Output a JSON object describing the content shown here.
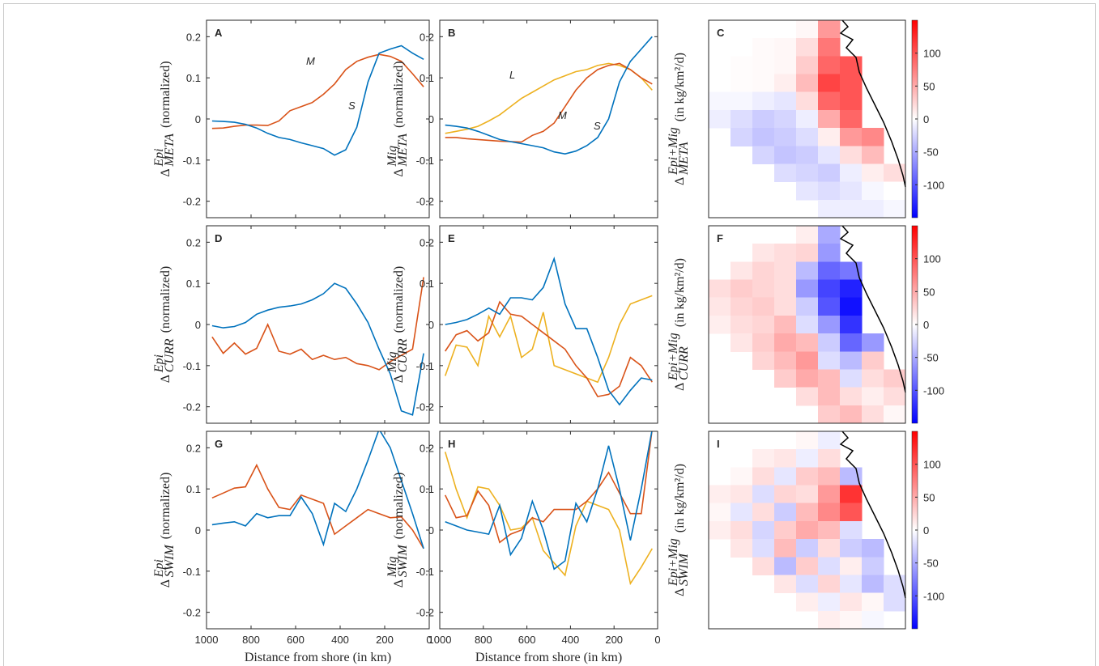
{
  "chart_data": [
    {
      "type": "line",
      "label": "A",
      "ylabel": {
        "symbol": "Δ",
        "sup": "Epi",
        "sub": "META",
        "text": "(normalized)"
      },
      "x": [
        975,
        925,
        875,
        825,
        775,
        725,
        675,
        625,
        575,
        525,
        475,
        425,
        375,
        325,
        275,
        225,
        175,
        125,
        75,
        25
      ],
      "xlim": [
        0,
        1000
      ],
      "xdir": "reverse",
      "xticks": [
        1000,
        800,
        600,
        400,
        200,
        0
      ],
      "xticklabels": false,
      "ylim": [
        -0.24,
        0.24
      ],
      "yticks": [
        -0.2,
        -0.1,
        0,
        0.1,
        0.2
      ],
      "series": [
        {
          "name": "M",
          "color": "#d95319",
          "values": [
            -0.023,
            -0.022,
            -0.018,
            -0.015,
            -0.015,
            -0.016,
            -0.005,
            0.02,
            0.03,
            0.04,
            0.06,
            0.085,
            0.12,
            0.14,
            0.15,
            0.157,
            0.152,
            0.14,
            0.11,
            0.078
          ]
        },
        {
          "name": "S",
          "color": "#0072bd",
          "values": [
            -0.005,
            -0.006,
            -0.008,
            -0.013,
            -0.022,
            -0.035,
            -0.045,
            -0.05,
            -0.058,
            -0.065,
            -0.072,
            -0.088,
            -0.075,
            -0.02,
            0.09,
            0.16,
            0.17,
            0.178,
            0.16,
            0.145
          ]
        }
      ]
    },
    {
      "type": "line",
      "label": "B",
      "ylabel": {
        "symbol": "Δ",
        "sup": "Mig",
        "sub": "META",
        "text": "(normalized)"
      },
      "x": [
        975,
        925,
        875,
        825,
        775,
        725,
        675,
        625,
        575,
        525,
        475,
        425,
        375,
        325,
        275,
        225,
        175,
        125,
        75,
        25
      ],
      "xlim": [
        0,
        1000
      ],
      "xdir": "reverse",
      "xticks": [
        1000,
        800,
        600,
        400,
        200,
        0
      ],
      "xticklabels": false,
      "ylim": [
        -0.24,
        0.24
      ],
      "yticks": [
        -0.2,
        -0.1,
        0,
        0.1,
        0.2
      ],
      "series": [
        {
          "name": "L",
          "color": "#edb120",
          "values": [
            -0.035,
            -0.03,
            -0.025,
            -0.018,
            -0.005,
            0.01,
            0.03,
            0.05,
            0.065,
            0.08,
            0.095,
            0.105,
            0.115,
            0.12,
            0.13,
            0.135,
            0.13,
            0.12,
            0.1,
            0.07
          ]
        },
        {
          "name": "M",
          "color": "#d95319",
          "values": [
            -0.045,
            -0.045,
            -0.048,
            -0.05,
            -0.052,
            -0.054,
            -0.055,
            -0.056,
            -0.04,
            -0.03,
            -0.01,
            0.03,
            0.07,
            0.1,
            0.12,
            0.13,
            0.135,
            0.12,
            0.1,
            0.085
          ]
        },
        {
          "name": "S",
          "color": "#0072bd",
          "values": [
            -0.015,
            -0.018,
            -0.022,
            -0.03,
            -0.04,
            -0.05,
            -0.055,
            -0.06,
            -0.065,
            -0.07,
            -0.08,
            -0.085,
            -0.078,
            -0.065,
            -0.045,
            0.0,
            0.09,
            0.14,
            0.17,
            0.2
          ]
        }
      ]
    },
    {
      "type": "heatmap",
      "label": "C",
      "ylabel": {
        "symbol": "Δ",
        "sup": "Epi+Mig",
        "sub": "META",
        "text": "(in kg/km²/d)"
      },
      "clim": [
        -150,
        150
      ],
      "colormap": [
        "#0000ff",
        "#ffffff",
        "#ff0000"
      ],
      "cticks": [
        -100,
        -50,
        0,
        50,
        100
      ],
      "values": [
        [
          null,
          null,
          null,
          null,
          5,
          60,
          null,
          null,
          null
        ],
        [
          null,
          null,
          3,
          5,
          20,
          80,
          null,
          null,
          null
        ],
        [
          null,
          2,
          3,
          5,
          30,
          90,
          100,
          null,
          null
        ],
        [
          0,
          2,
          3,
          10,
          40,
          110,
          100,
          null,
          null
        ],
        [
          -5,
          -5,
          -10,
          -15,
          20,
          90,
          100,
          null,
          null
        ],
        [
          -10,
          -20,
          -30,
          -25,
          -10,
          50,
          90,
          null,
          null
        ],
        [
          null,
          -25,
          -35,
          -30,
          -20,
          10,
          60,
          70,
          null
        ],
        [
          null,
          null,
          -25,
          -35,
          -30,
          -15,
          20,
          40,
          null
        ],
        [
          null,
          null,
          null,
          -20,
          -25,
          -30,
          -10,
          10,
          20
        ],
        [
          null,
          null,
          null,
          null,
          -15,
          -20,
          -15,
          -5,
          0
        ],
        [
          null,
          null,
          null,
          null,
          null,
          -10,
          -10,
          -10,
          -5
        ]
      ]
    },
    {
      "type": "line",
      "label": "D",
      "ylabel": {
        "symbol": "Δ",
        "sup": "Epi",
        "sub": "CURR",
        "text": "(normalized)"
      },
      "x": [
        975,
        925,
        875,
        825,
        775,
        725,
        675,
        625,
        575,
        525,
        475,
        425,
        375,
        325,
        275,
        225,
        175,
        125,
        75,
        25
      ],
      "xlim": [
        0,
        1000
      ],
      "xdir": "reverse",
      "xticks": [
        1000,
        800,
        600,
        400,
        200,
        0
      ],
      "xticklabels": false,
      "ylim": [
        -0.24,
        0.24
      ],
      "yticks": [
        -0.2,
        -0.1,
        0,
        0.1,
        0.2
      ],
      "series": [
        {
          "color": "#d95319",
          "values": [
            -0.03,
            -0.07,
            -0.045,
            -0.072,
            -0.058,
            0.0,
            -0.065,
            -0.072,
            -0.06,
            -0.085,
            -0.075,
            -0.085,
            -0.08,
            -0.095,
            -0.1,
            -0.11,
            -0.09,
            -0.075,
            -0.06,
            0.115
          ]
        },
        {
          "color": "#0072bd",
          "values": [
            -0.003,
            -0.008,
            -0.005,
            0.005,
            0.025,
            0.035,
            0.042,
            0.045,
            0.05,
            0.06,
            0.075,
            0.1,
            0.088,
            0.05,
            0.005,
            -0.06,
            -0.12,
            -0.21,
            -0.22,
            -0.07
          ]
        }
      ]
    },
    {
      "type": "line",
      "label": "E",
      "ylabel": {
        "symbol": "Δ",
        "sup": "Mig",
        "sub": "CURR",
        "text": "(normalized)"
      },
      "x": [
        975,
        925,
        875,
        825,
        775,
        725,
        675,
        625,
        575,
        525,
        475,
        425,
        375,
        325,
        275,
        225,
        175,
        125,
        75,
        25
      ],
      "xlim": [
        0,
        1000
      ],
      "xdir": "reverse",
      "xticks": [
        1000,
        800,
        600,
        400,
        200,
        0
      ],
      "xticklabels": false,
      "ylim": [
        -0.24,
        0.24
      ],
      "yticks": [
        -0.2,
        -0.1,
        0,
        0.1,
        0.2
      ],
      "series": [
        {
          "color": "#edb120",
          "values": [
            -0.125,
            -0.05,
            -0.055,
            -0.1,
            0.02,
            -0.03,
            0.02,
            -0.08,
            -0.06,
            0.03,
            -0.1,
            -0.11,
            -0.12,
            -0.13,
            -0.14,
            -0.08,
            0.0,
            0.05,
            0.06,
            0.07
          ]
        },
        {
          "color": "#d95319",
          "values": [
            -0.065,
            -0.025,
            -0.015,
            -0.04,
            -0.02,
            0.055,
            0.025,
            0.02,
            0.0,
            -0.02,
            -0.04,
            -0.06,
            -0.1,
            -0.13,
            -0.175,
            -0.17,
            -0.15,
            -0.08,
            -0.1,
            -0.14
          ]
        },
        {
          "color": "#0072bd",
          "values": [
            0.0,
            0.005,
            0.012,
            0.025,
            0.04,
            0.025,
            0.065,
            0.065,
            0.06,
            0.09,
            0.16,
            0.05,
            -0.01,
            -0.01,
            -0.08,
            -0.16,
            -0.195,
            -0.16,
            -0.13,
            -0.135
          ]
        }
      ]
    },
    {
      "type": "heatmap",
      "label": "F",
      "ylabel": {
        "symbol": "Δ",
        "sup": "Epi+Mig",
        "sub": "CURR",
        "text": "(in kg/km²/d)"
      },
      "clim": [
        -150,
        150
      ],
      "colormap": [
        "#0000ff",
        "#ffffff",
        "#ff0000"
      ],
      "cticks": [
        -100,
        -50,
        0,
        50,
        100
      ],
      "values": [
        [
          null,
          null,
          null,
          null,
          10,
          -50,
          null,
          null,
          null
        ],
        [
          null,
          null,
          15,
          20,
          25,
          -60,
          null,
          null,
          null
        ],
        [
          null,
          15,
          25,
          20,
          -40,
          -90,
          -80,
          null,
          null
        ],
        [
          20,
          30,
          25,
          20,
          -60,
          -110,
          -130,
          null,
          null
        ],
        [
          15,
          25,
          30,
          20,
          -30,
          -100,
          -140,
          null,
          null
        ],
        [
          10,
          20,
          25,
          40,
          -20,
          -60,
          -120,
          null,
          null
        ],
        [
          null,
          15,
          30,
          50,
          40,
          -30,
          -90,
          -60,
          null
        ],
        [
          null,
          null,
          25,
          40,
          60,
          -20,
          -40,
          30,
          null
        ],
        [
          null,
          null,
          null,
          30,
          50,
          40,
          -20,
          20,
          30
        ],
        [
          null,
          null,
          null,
          null,
          20,
          40,
          20,
          10,
          20
        ],
        [
          null,
          null,
          null,
          null,
          null,
          30,
          40,
          20,
          5
        ]
      ]
    },
    {
      "type": "line",
      "label": "G",
      "ylabel": {
        "symbol": "Δ",
        "sup": "Epi",
        "sub": "SWIM",
        "text": "(normalized)"
      },
      "x": [
        975,
        925,
        875,
        825,
        775,
        725,
        675,
        625,
        575,
        525,
        475,
        425,
        375,
        325,
        275,
        225,
        175,
        125,
        75,
        25
      ],
      "xlim": [
        0,
        1000
      ],
      "xdir": "reverse",
      "xticks": [
        1000,
        800,
        600,
        400,
        200,
        0
      ],
      "xticklabels": true,
      "xlabel": "Distance from shore (in km)",
      "ylim": [
        -0.24,
        0.24
      ],
      "yticks": [
        -0.2,
        -0.1,
        0,
        0.1,
        0.2
      ],
      "series": [
        {
          "color": "#d95319",
          "values": [
            0.078,
            0.09,
            0.102,
            0.105,
            0.158,
            0.1,
            0.055,
            0.05,
            0.085,
            0.075,
            0.065,
            -0.01,
            0.01,
            0.03,
            0.05,
            0.04,
            0.03,
            0.032,
            0.0,
            -0.045
          ]
        },
        {
          "color": "#0072bd",
          "values": [
            0.013,
            0.017,
            0.02,
            0.01,
            0.04,
            0.03,
            0.035,
            0.035,
            0.08,
            0.04,
            -0.035,
            0.065,
            0.045,
            0.1,
            0.17,
            0.245,
            0.2,
            0.12,
            0.04,
            -0.045
          ]
        }
      ]
    },
    {
      "type": "line",
      "label": "H",
      "ylabel": {
        "symbol": "Δ",
        "sup": "Mig",
        "sub": "SWIM",
        "text": "(normalized)"
      },
      "x": [
        975,
        925,
        875,
        825,
        775,
        725,
        675,
        625,
        575,
        525,
        475,
        425,
        375,
        325,
        275,
        225,
        175,
        125,
        75,
        25
      ],
      "xlim": [
        0,
        1000
      ],
      "xdir": "reverse",
      "xticks": [
        1000,
        800,
        600,
        400,
        200,
        0
      ],
      "xticklabels": true,
      "xlabel": "Distance from shore (in km)",
      "ylim": [
        -0.24,
        0.24
      ],
      "yticks": [
        -0.2,
        -0.1,
        0,
        0.1,
        0.2
      ],
      "series": [
        {
          "color": "#edb120",
          "values": [
            0.19,
            0.1,
            0.03,
            0.105,
            0.1,
            0.06,
            0.0,
            0.005,
            0.03,
            -0.05,
            -0.08,
            -0.11,
            0.01,
            0.07,
            0.06,
            0.05,
            0.0,
            -0.13,
            -0.09,
            -0.045
          ]
        },
        {
          "color": "#d95319",
          "values": [
            0.085,
            0.03,
            0.035,
            0.095,
            0.06,
            -0.03,
            -0.01,
            0.0,
            0.03,
            0.02,
            0.05,
            0.05,
            0.05,
            0.07,
            0.1,
            0.14,
            0.09,
            0.04,
            0.04,
            0.245
          ]
        },
        {
          "color": "#0072bd",
          "values": [
            0.02,
            0.01,
            0.0,
            -0.005,
            -0.01,
            0.06,
            -0.06,
            -0.02,
            0.07,
            0.0,
            -0.095,
            -0.075,
            0.065,
            0.02,
            0.1,
            0.205,
            0.1,
            -0.025,
            0.1,
            0.245
          ]
        }
      ]
    },
    {
      "type": "heatmap",
      "label": "I",
      "ylabel": {
        "symbol": "Δ",
        "sup": "Epi+Mig",
        "sub": "SWIM",
        "text": "(in kg/km²/d)"
      },
      "clim": [
        -150,
        150
      ],
      "colormap": [
        "#0000ff",
        "#ffffff",
        "#ff0000"
      ],
      "cticks": [
        -100,
        -50,
        0,
        50,
        100
      ],
      "values": [
        [
          null,
          null,
          null,
          null,
          5,
          -10,
          null,
          null,
          null
        ],
        [
          null,
          null,
          10,
          15,
          -10,
          20,
          null,
          null,
          null
        ],
        [
          null,
          5,
          20,
          -15,
          30,
          40,
          -40,
          null,
          null
        ],
        [
          10,
          15,
          -20,
          25,
          20,
          60,
          120,
          null,
          null
        ],
        [
          5,
          -15,
          20,
          -30,
          40,
          70,
          100,
          null,
          null
        ],
        [
          10,
          20,
          -25,
          30,
          50,
          40,
          -20,
          null,
          null
        ],
        [
          null,
          15,
          -20,
          40,
          -30,
          20,
          -30,
          -40,
          null
        ],
        [
          null,
          null,
          20,
          -40,
          30,
          -20,
          10,
          -30,
          null
        ],
        [
          null,
          null,
          null,
          15,
          -20,
          25,
          -15,
          -40,
          -20
        ],
        [
          null,
          null,
          null,
          null,
          10,
          -10,
          15,
          5,
          -20
        ],
        [
          null,
          null,
          null,
          null,
          null,
          10,
          5,
          -5,
          null
        ]
      ]
    }
  ]
}
